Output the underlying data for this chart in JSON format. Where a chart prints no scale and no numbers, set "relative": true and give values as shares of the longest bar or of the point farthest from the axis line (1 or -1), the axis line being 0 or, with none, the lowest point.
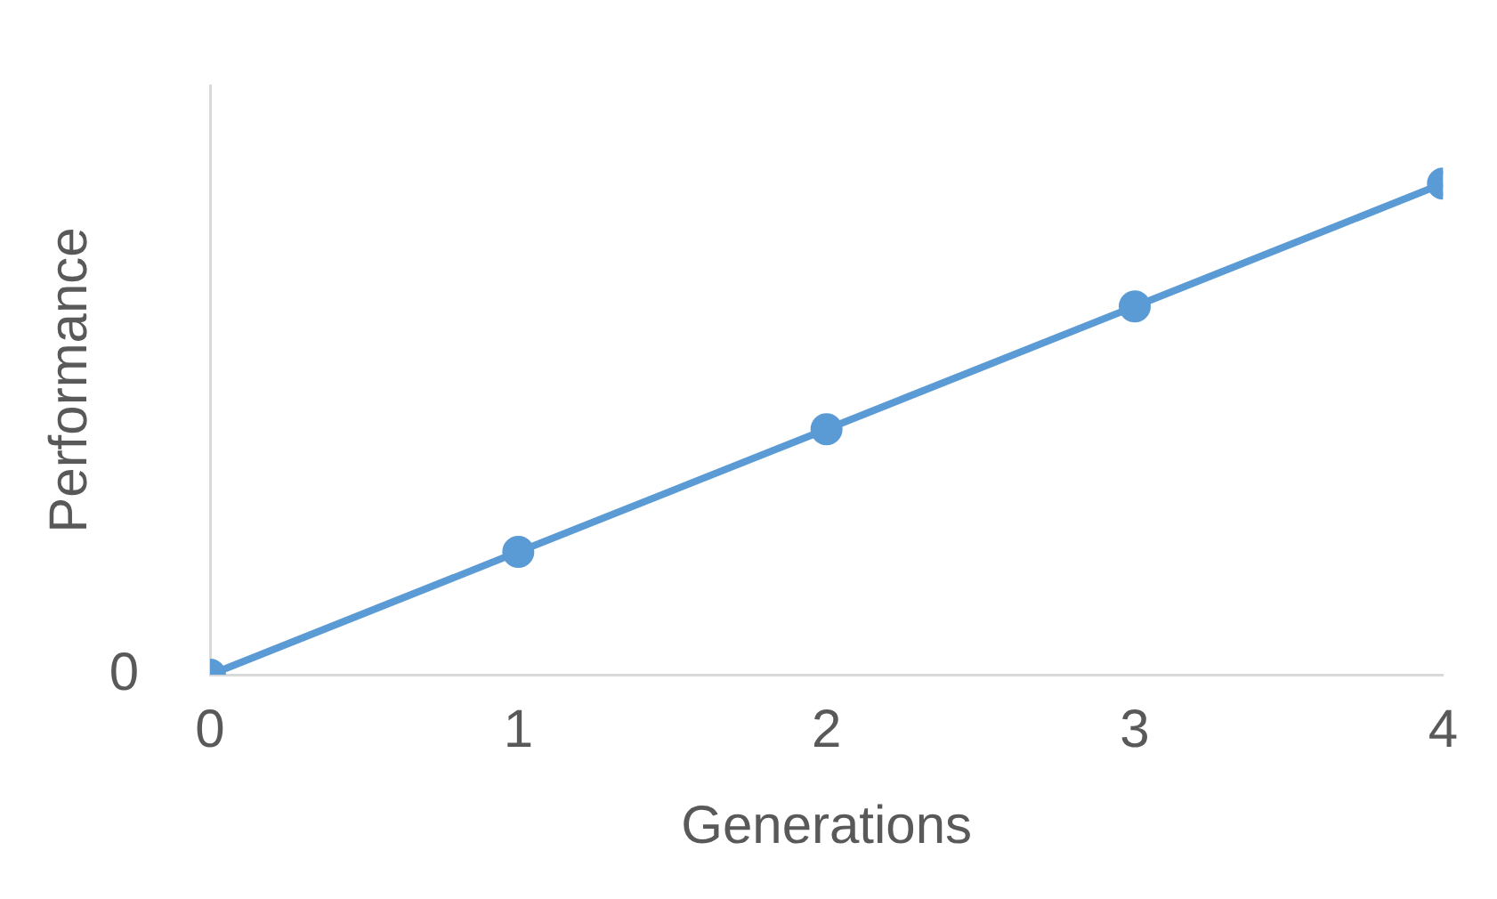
{
  "chart_data": {
    "type": "line",
    "xlabel": "Generations",
    "ylabel": "Performance",
    "x": [
      0,
      1,
      2,
      3,
      4
    ],
    "xlim": [
      0,
      4
    ],
    "xticks": [
      0,
      1,
      2,
      3,
      4
    ],
    "series": [
      {
        "color": "#5b9bd5",
        "values": [
          0,
          0.25,
          0.5,
          0.75,
          1
        ]
      }
    ],
    "relative": true,
    "annotations": [
      "0"
    ],
    "grid": false,
    "legend": false,
    "marker": "circle",
    "line_style": "solid"
  }
}
